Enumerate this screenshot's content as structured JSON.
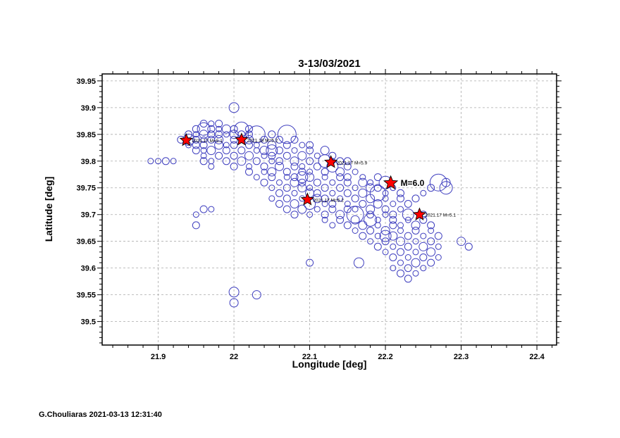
{
  "figure": {
    "title": "3-13/03/2021",
    "xlabel": "Longitude [deg]",
    "ylabel": "Latitude [deg]",
    "footer": "G.Chouliaras 2021-03-13 12:31:40"
  },
  "chart_data": {
    "type": "scatter",
    "title": "3-13/03/2021",
    "xlabel": "Longitude [deg]",
    "ylabel": "Latitude [deg]",
    "xlim": [
      21.826,
      22.426
    ],
    "ylim": [
      39.456,
      39.963
    ],
    "grid": "dashed",
    "legend": "none",
    "point_color": "#3f3fbf",
    "grid_color": "#aaaaaa",
    "star_fill": "#ff0000",
    "star_stroke": "#000000",
    "x_major_ticks": [
      {
        "v": 21.9,
        "label": "21.9"
      },
      {
        "v": 22.0,
        "label": "22"
      },
      {
        "v": 22.1,
        "label": "22.1"
      },
      {
        "v": 22.2,
        "label": "22.2"
      },
      {
        "v": 22.3,
        "label": "22.3"
      },
      {
        "v": 22.4,
        "label": "22.4"
      }
    ],
    "y_major_ticks": [
      {
        "v": 39.5,
        "label": "39.5"
      },
      {
        "v": 39.55,
        "label": "39.55"
      },
      {
        "v": 39.6,
        "label": "39.6"
      },
      {
        "v": 39.65,
        "label": "39.65"
      },
      {
        "v": 39.7,
        "label": "39.7"
      },
      {
        "v": 39.75,
        "label": "39.75"
      },
      {
        "v": 39.8,
        "label": "39.8"
      },
      {
        "v": 39.85,
        "label": "39.85"
      },
      {
        "v": 39.9,
        "label": "39.9"
      },
      {
        "v": 39.95,
        "label": "39.95"
      }
    ],
    "x_minor_step": 0.02,
    "y_minor_step": 0.01,
    "stars": [
      {
        "lon": 21.937,
        "lat": 39.839,
        "size": 9,
        "label": "2021.17 M=5.1",
        "bold": false
      },
      {
        "lon": 22.01,
        "lat": 39.84,
        "size": 9,
        "label": "2021.18 M=5.2",
        "bold": false
      },
      {
        "lon": 22.128,
        "lat": 39.798,
        "size": 9,
        "label": "2021.17 M=5.9",
        "bold": false
      },
      {
        "lon": 22.207,
        "lat": 39.759,
        "size": 10,
        "label": "M=6.0",
        "bold": true
      },
      {
        "lon": 22.097,
        "lat": 39.728,
        "size": 9,
        "label": "2021.17 M=5.2",
        "bold": false
      },
      {
        "lon": 22.245,
        "lat": 39.7,
        "size": 9,
        "label": "2021.17 M=5.1",
        "bold": false
      }
    ],
    "points": [
      [
        22.0,
        39.9,
        7
      ],
      [
        21.96,
        39.87,
        5
      ],
      [
        21.97,
        39.87,
        4
      ],
      [
        21.98,
        39.87,
        5
      ],
      [
        21.95,
        39.86,
        5
      ],
      [
        21.96,
        39.86,
        9
      ],
      [
        21.97,
        39.86,
        5
      ],
      [
        21.98,
        39.86,
        4
      ],
      [
        21.99,
        39.86,
        6
      ],
      [
        22.0,
        39.86,
        5
      ],
      [
        22.01,
        39.86,
        10
      ],
      [
        22.02,
        39.86,
        5
      ],
      [
        21.94,
        39.85,
        5
      ],
      [
        21.95,
        39.85,
        4
      ],
      [
        21.96,
        39.85,
        6
      ],
      [
        21.97,
        39.85,
        5
      ],
      [
        21.98,
        39.85,
        5
      ],
      [
        21.99,
        39.85,
        4
      ],
      [
        22.0,
        39.85,
        6
      ],
      [
        22.01,
        39.85,
        5
      ],
      [
        22.02,
        39.85,
        5
      ],
      [
        22.03,
        39.85,
        12
      ],
      [
        22.05,
        39.85,
        5
      ],
      [
        22.07,
        39.85,
        13
      ],
      [
        21.93,
        39.84,
        5
      ],
      [
        21.94,
        39.84,
        8
      ],
      [
        21.95,
        39.84,
        5
      ],
      [
        21.96,
        39.84,
        4
      ],
      [
        21.97,
        39.84,
        5
      ],
      [
        21.98,
        39.84,
        6
      ],
      [
        22.0,
        39.84,
        5
      ],
      [
        22.01,
        39.84,
        4
      ],
      [
        22.02,
        39.84,
        6
      ],
      [
        22.04,
        39.84,
        5
      ],
      [
        22.06,
        39.84,
        5
      ],
      [
        22.08,
        39.84,
        5
      ],
      [
        21.94,
        39.83,
        4
      ],
      [
        21.95,
        39.83,
        5
      ],
      [
        21.96,
        39.83,
        5
      ],
      [
        21.98,
        39.83,
        6
      ],
      [
        21.99,
        39.83,
        4
      ],
      [
        22.0,
        39.83,
        5
      ],
      [
        22.02,
        39.83,
        5
      ],
      [
        22.03,
        39.83,
        4
      ],
      [
        22.05,
        39.83,
        6
      ],
      [
        22.07,
        39.83,
        5
      ],
      [
        22.09,
        39.83,
        4
      ],
      [
        22.1,
        39.83,
        5
      ],
      [
        21.95,
        39.82,
        5
      ],
      [
        21.96,
        39.82,
        4
      ],
      [
        21.97,
        39.82,
        6
      ],
      [
        21.99,
        39.82,
        5
      ],
      [
        22.01,
        39.82,
        5
      ],
      [
        22.03,
        39.82,
        4
      ],
      [
        22.04,
        39.82,
        6
      ],
      [
        22.05,
        39.82,
        8
      ],
      [
        22.06,
        39.82,
        5
      ],
      [
        22.08,
        39.82,
        4
      ],
      [
        22.1,
        39.82,
        5
      ],
      [
        22.12,
        39.82,
        6
      ],
      [
        21.96,
        39.81,
        4
      ],
      [
        21.98,
        39.81,
        5
      ],
      [
        22.0,
        39.81,
        5
      ],
      [
        22.02,
        39.81,
        6
      ],
      [
        22.04,
        39.81,
        4
      ],
      [
        22.05,
        39.81,
        5
      ],
      [
        22.07,
        39.81,
        5
      ],
      [
        22.09,
        39.81,
        6
      ],
      [
        22.11,
        39.81,
        4
      ],
      [
        22.13,
        39.81,
        5
      ],
      [
        21.89,
        39.8,
        4
      ],
      [
        21.9,
        39.8,
        4
      ],
      [
        21.91,
        39.8,
        5
      ],
      [
        21.92,
        39.8,
        4
      ],
      [
        21.96,
        39.8,
        5
      ],
      [
        21.97,
        39.8,
        4
      ],
      [
        21.99,
        39.8,
        5
      ],
      [
        22.01,
        39.8,
        6
      ],
      [
        22.03,
        39.8,
        5
      ],
      [
        22.05,
        39.8,
        4
      ],
      [
        22.06,
        39.8,
        5
      ],
      [
        22.08,
        39.8,
        6
      ],
      [
        22.1,
        39.8,
        5
      ],
      [
        22.12,
        39.8,
        9
      ],
      [
        22.13,
        39.8,
        4
      ],
      [
        22.14,
        39.8,
        5
      ],
      [
        22.15,
        39.8,
        5
      ],
      [
        21.97,
        39.79,
        4
      ],
      [
        22.0,
        39.79,
        5
      ],
      [
        22.02,
        39.79,
        4
      ],
      [
        22.04,
        39.79,
        5
      ],
      [
        22.06,
        39.79,
        6
      ],
      [
        22.08,
        39.79,
        5
      ],
      [
        22.09,
        39.79,
        4
      ],
      [
        22.11,
        39.79,
        5
      ],
      [
        22.13,
        39.79,
        8
      ],
      [
        22.15,
        39.79,
        5
      ],
      [
        22.02,
        39.78,
        5
      ],
      [
        22.04,
        39.78,
        4
      ],
      [
        22.05,
        39.78,
        6
      ],
      [
        22.07,
        39.78,
        5
      ],
      [
        22.09,
        39.78,
        5
      ],
      [
        22.1,
        39.78,
        4
      ],
      [
        22.12,
        39.78,
        5
      ],
      [
        22.14,
        39.78,
        6
      ],
      [
        22.16,
        39.78,
        4
      ],
      [
        22.03,
        39.77,
        4
      ],
      [
        22.05,
        39.77,
        5
      ],
      [
        22.07,
        39.77,
        4
      ],
      [
        22.08,
        39.77,
        5
      ],
      [
        22.09,
        39.77,
        8
      ],
      [
        22.1,
        39.77,
        6
      ],
      [
        22.12,
        39.77,
        4
      ],
      [
        22.14,
        39.77,
        5
      ],
      [
        22.15,
        39.77,
        5
      ],
      [
        22.17,
        39.77,
        4
      ],
      [
        22.19,
        39.77,
        5
      ],
      [
        22.04,
        39.76,
        5
      ],
      [
        22.06,
        39.76,
        4
      ],
      [
        22.08,
        39.76,
        6
      ],
      [
        22.09,
        39.76,
        5
      ],
      [
        22.11,
        39.76,
        5
      ],
      [
        22.13,
        39.76,
        4
      ],
      [
        22.15,
        39.76,
        5
      ],
      [
        22.17,
        39.76,
        6
      ],
      [
        22.18,
        39.76,
        4
      ],
      [
        22.2,
        39.76,
        9
      ],
      [
        22.27,
        39.76,
        12
      ],
      [
        22.28,
        39.76,
        6
      ],
      [
        22.05,
        39.75,
        4
      ],
      [
        22.07,
        39.75,
        5
      ],
      [
        22.09,
        39.75,
        6
      ],
      [
        22.1,
        39.75,
        4
      ],
      [
        22.12,
        39.75,
        5
      ],
      [
        22.14,
        39.75,
        5
      ],
      [
        22.16,
        39.75,
        4
      ],
      [
        22.18,
        39.75,
        6
      ],
      [
        22.19,
        39.75,
        5
      ],
      [
        22.21,
        39.75,
        4
      ],
      [
        22.26,
        39.75,
        5
      ],
      [
        22.28,
        39.75,
        9
      ],
      [
        22.06,
        39.74,
        5
      ],
      [
        22.08,
        39.74,
        4
      ],
      [
        22.1,
        39.74,
        6
      ],
      [
        22.11,
        39.74,
        5
      ],
      [
        22.13,
        39.74,
        4
      ],
      [
        22.15,
        39.74,
        5
      ],
      [
        22.17,
        39.74,
        6
      ],
      [
        22.19,
        39.74,
        11
      ],
      [
        22.2,
        39.74,
        4
      ],
      [
        22.22,
        39.74,
        5
      ],
      [
        22.25,
        39.74,
        4
      ],
      [
        22.05,
        39.73,
        4
      ],
      [
        22.07,
        39.73,
        5
      ],
      [
        22.09,
        39.73,
        4
      ],
      [
        22.11,
        39.73,
        6
      ],
      [
        22.12,
        39.73,
        5
      ],
      [
        22.14,
        39.73,
        4
      ],
      [
        22.16,
        39.73,
        5
      ],
      [
        22.18,
        39.73,
        6
      ],
      [
        22.2,
        39.73,
        4
      ],
      [
        22.22,
        39.73,
        5
      ],
      [
        22.24,
        39.73,
        5
      ],
      [
        22.06,
        39.72,
        5
      ],
      [
        22.08,
        39.72,
        6
      ],
      [
        22.1,
        39.72,
        8
      ],
      [
        22.12,
        39.72,
        4
      ],
      [
        22.13,
        39.72,
        5
      ],
      [
        22.15,
        39.72,
        4
      ],
      [
        22.17,
        39.72,
        5
      ],
      [
        22.19,
        39.72,
        6
      ],
      [
        22.21,
        39.72,
        4
      ],
      [
        22.23,
        39.72,
        5
      ],
      [
        21.96,
        39.71,
        5
      ],
      [
        21.97,
        39.71,
        4
      ],
      [
        22.07,
        39.71,
        5
      ],
      [
        22.09,
        39.71,
        6
      ],
      [
        22.11,
        39.71,
        4
      ],
      [
        22.13,
        39.71,
        5
      ],
      [
        22.15,
        39.71,
        5
      ],
      [
        22.16,
        39.71,
        4
      ],
      [
        22.18,
        39.71,
        6
      ],
      [
        22.2,
        39.71,
        5
      ],
      [
        22.22,
        39.71,
        4
      ],
      [
        21.95,
        39.7,
        4
      ],
      [
        22.08,
        39.7,
        5
      ],
      [
        22.1,
        39.7,
        4
      ],
      [
        22.12,
        39.7,
        5
      ],
      [
        22.14,
        39.7,
        6
      ],
      [
        22.16,
        39.7,
        12
      ],
      [
        22.18,
        39.7,
        5
      ],
      [
        22.2,
        39.7,
        4
      ],
      [
        22.21,
        39.7,
        5
      ],
      [
        22.23,
        39.7,
        8
      ],
      [
        22.25,
        39.7,
        5
      ],
      [
        22.12,
        39.69,
        4
      ],
      [
        22.14,
        39.69,
        5
      ],
      [
        22.16,
        39.69,
        6
      ],
      [
        22.18,
        39.69,
        9
      ],
      [
        22.19,
        39.69,
        4
      ],
      [
        22.21,
        39.69,
        5
      ],
      [
        22.23,
        39.69,
        4
      ],
      [
        22.25,
        39.69,
        5
      ],
      [
        21.95,
        39.68,
        5
      ],
      [
        22.13,
        39.68,
        4
      ],
      [
        22.15,
        39.68,
        5
      ],
      [
        22.17,
        39.68,
        6
      ],
      [
        22.19,
        39.68,
        4
      ],
      [
        22.21,
        39.68,
        5
      ],
      [
        22.22,
        39.68,
        4
      ],
      [
        22.24,
        39.68,
        6
      ],
      [
        22.26,
        39.68,
        5
      ],
      [
        22.16,
        39.67,
        4
      ],
      [
        22.18,
        39.67,
        5
      ],
      [
        22.2,
        39.67,
        6
      ],
      [
        22.22,
        39.67,
        4
      ],
      [
        22.24,
        39.67,
        5
      ],
      [
        22.26,
        39.67,
        4
      ],
      [
        22.17,
        39.66,
        5
      ],
      [
        22.19,
        39.66,
        4
      ],
      [
        22.2,
        39.66,
        8
      ],
      [
        22.21,
        39.66,
        6
      ],
      [
        22.23,
        39.66,
        5
      ],
      [
        22.25,
        39.66,
        4
      ],
      [
        22.27,
        39.66,
        5
      ],
      [
        22.18,
        39.65,
        4
      ],
      [
        22.2,
        39.65,
        5
      ],
      [
        22.22,
        39.65,
        6
      ],
      [
        22.24,
        39.65,
        4
      ],
      [
        22.26,
        39.65,
        5
      ],
      [
        22.3,
        39.65,
        6
      ],
      [
        22.19,
        39.64,
        5
      ],
      [
        22.21,
        39.64,
        4
      ],
      [
        22.23,
        39.64,
        5
      ],
      [
        22.25,
        39.64,
        6
      ],
      [
        22.27,
        39.64,
        4
      ],
      [
        22.31,
        39.64,
        5
      ],
      [
        22.2,
        39.63,
        4
      ],
      [
        22.22,
        39.63,
        5
      ],
      [
        22.24,
        39.63,
        4
      ],
      [
        22.26,
        39.63,
        6
      ],
      [
        22.21,
        39.62,
        5
      ],
      [
        22.23,
        39.62,
        4
      ],
      [
        22.25,
        39.62,
        5
      ],
      [
        22.27,
        39.62,
        4
      ],
      [
        22.1,
        39.61,
        5
      ],
      [
        22.165,
        39.61,
        7
      ],
      [
        22.22,
        39.61,
        4
      ],
      [
        22.24,
        39.61,
        6
      ],
      [
        22.26,
        39.61,
        5
      ],
      [
        22.21,
        39.6,
        4
      ],
      [
        22.23,
        39.6,
        5
      ],
      [
        22.25,
        39.6,
        4
      ],
      [
        22.22,
        39.59,
        5
      ],
      [
        22.24,
        39.59,
        4
      ],
      [
        22.23,
        39.58,
        5
      ],
      [
        22.0,
        39.555,
        7
      ],
      [
        22.0,
        39.535,
        6
      ],
      [
        22.03,
        39.55,
        6
      ]
    ]
  }
}
